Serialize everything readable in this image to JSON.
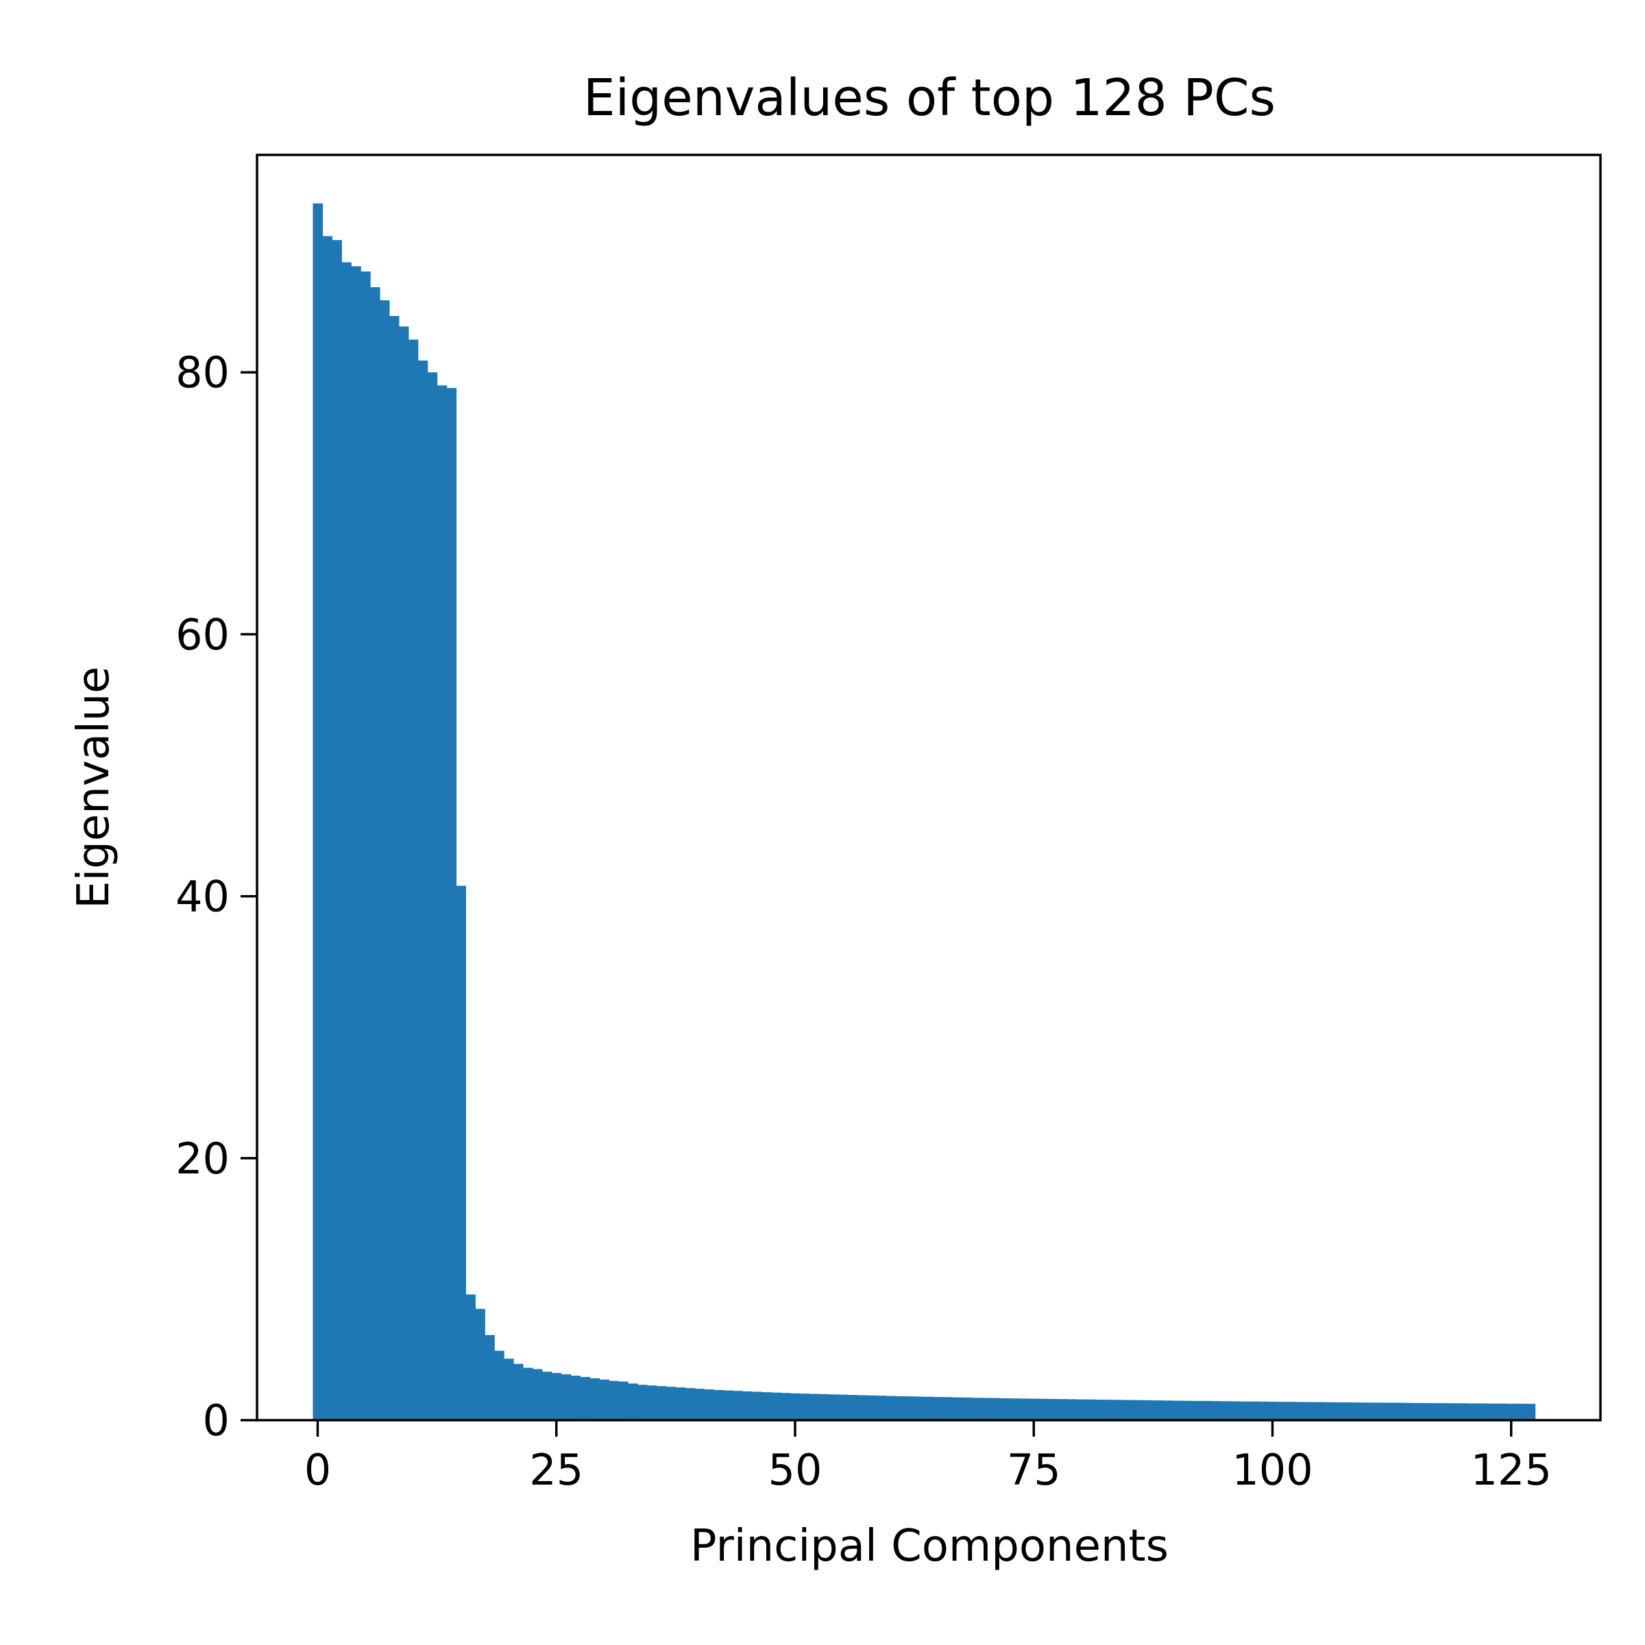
{
  "chart_data": {
    "type": "bar",
    "title": "Eigenvalues of top 128 PCs",
    "xlabel": "Principal Components",
    "ylabel": "Eigenvalue",
    "xlim": [
      -6.35,
      134.35
    ],
    "ylim": [
      0,
      96.6
    ],
    "xticks": [
      0,
      25,
      50,
      75,
      100,
      125
    ],
    "yticks": [
      0,
      20,
      40,
      60,
      80
    ],
    "grid": false,
    "legend": "none",
    "bar_color": "#1f77b4",
    "x": [
      0,
      1,
      2,
      3,
      4,
      5,
      6,
      7,
      8,
      9,
      10,
      11,
      12,
      13,
      14,
      15,
      16,
      17,
      18,
      19,
      20,
      21,
      22,
      23,
      24,
      25,
      26,
      27,
      28,
      29,
      30,
      31,
      32,
      33,
      34,
      35,
      36,
      37,
      38,
      39,
      40,
      41,
      42,
      43,
      44,
      45,
      46,
      47,
      48,
      49,
      50,
      51,
      52,
      53,
      54,
      55,
      56,
      57,
      58,
      59,
      60,
      61,
      62,
      63,
      64,
      65,
      66,
      67,
      68,
      69,
      70,
      71,
      72,
      73,
      74,
      75,
      76,
      77,
      78,
      79,
      80,
      81,
      82,
      83,
      84,
      85,
      86,
      87,
      88,
      89,
      90,
      91,
      92,
      93,
      94,
      95,
      96,
      97,
      98,
      99,
      100,
      101,
      102,
      103,
      104,
      105,
      106,
      107,
      108,
      109,
      110,
      111,
      112,
      113,
      114,
      115,
      116,
      117,
      118,
      119,
      120,
      121,
      122,
      123,
      124,
      125,
      126,
      127
    ],
    "values": [
      92.9,
      90.4,
      90.1,
      88.4,
      88.1,
      87.7,
      86.5,
      85.5,
      84.3,
      83.5,
      82.5,
      80.9,
      80.0,
      79.0,
      78.8,
      40.8,
      9.6,
      8.5,
      6.5,
      5.3,
      4.7,
      4.3,
      4.0,
      3.9,
      3.7,
      3.6,
      3.5,
      3.4,
      3.3,
      3.2,
      3.1,
      3.0,
      2.95,
      2.8,
      2.7,
      2.65,
      2.6,
      2.55,
      2.5,
      2.45,
      2.4,
      2.35,
      2.3,
      2.27,
      2.24,
      2.2,
      2.17,
      2.14,
      2.11,
      2.08,
      2.05,
      2.03,
      2.01,
      1.99,
      1.97,
      1.95,
      1.93,
      1.91,
      1.89,
      1.87,
      1.85,
      1.83,
      1.82,
      1.8,
      1.79,
      1.77,
      1.76,
      1.74,
      1.73,
      1.71,
      1.7,
      1.69,
      1.67,
      1.66,
      1.65,
      1.64,
      1.63,
      1.62,
      1.61,
      1.6,
      1.59,
      1.58,
      1.57,
      1.56,
      1.55,
      1.54,
      1.53,
      1.52,
      1.51,
      1.5,
      1.49,
      1.48,
      1.47,
      1.47,
      1.46,
      1.45,
      1.44,
      1.43,
      1.43,
      1.42,
      1.41,
      1.4,
      1.4,
      1.39,
      1.38,
      1.38,
      1.37,
      1.36,
      1.36,
      1.35,
      1.34,
      1.34,
      1.33,
      1.33,
      1.32,
      1.31,
      1.31,
      1.3,
      1.3,
      1.29,
      1.29,
      1.28,
      1.28,
      1.27,
      1.27,
      1.26,
      1.26,
      1.25
    ]
  }
}
